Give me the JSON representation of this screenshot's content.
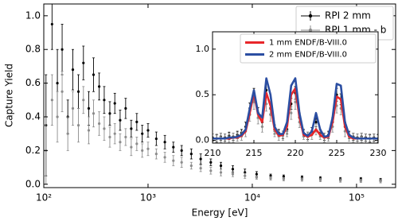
{
  "chart_data": [
    {
      "type": "errorbar",
      "xlabel": "Energy [eV]",
      "ylabel": "Capture Yield",
      "xscale": "log",
      "xlim": [
        100,
        237000
      ],
      "ylim": [
        -0.02,
        1.07
      ],
      "xticks": [
        {
          "value": 100,
          "label": "10²"
        },
        {
          "value": 1000,
          "label": "10³"
        },
        {
          "value": 10000,
          "label": "10⁴"
        },
        {
          "value": 100000,
          "label": "10⁵"
        }
      ],
      "yticks": [
        {
          "value": 0,
          "label": "0.0"
        },
        0.2,
        0.4,
        0.6,
        0.8,
        {
          "value": 1,
          "label": "1.0"
        }
      ],
      "legend": "upper right",
      "x": [
        105,
        120,
        135,
        150,
        170,
        190,
        215,
        240,
        270,
        300,
        340,
        380,
        430,
        480,
        540,
        610,
        690,
        780,
        880,
        1000,
        1200,
        1450,
        1750,
        2100,
        2600,
        3200,
        4000,
        5000,
        6500,
        8500,
        11000,
        15000,
        20000,
        30000,
        45000,
        70000,
        110000,
        170000
      ],
      "series": [
        {
          "name": "RPI 2 mm",
          "color": "#000000",
          "values": [
            0.35,
            0.95,
            0.6,
            0.8,
            0.4,
            0.68,
            0.55,
            0.72,
            0.45,
            0.65,
            0.58,
            0.5,
            0.42,
            0.48,
            0.38,
            0.45,
            0.33,
            0.37,
            0.3,
            0.32,
            0.27,
            0.25,
            0.22,
            0.2,
            0.18,
            0.15,
            0.13,
            0.11,
            0.09,
            0.07,
            0.06,
            0.05,
            0.045,
            0.04,
            0.035,
            0.03,
            0.03,
            0.025
          ],
          "errors": [
            0.3,
            0.15,
            0.2,
            0.15,
            0.1,
            0.12,
            0.1,
            0.1,
            0.1,
            0.1,
            0.08,
            0.08,
            0.07,
            0.06,
            0.06,
            0.06,
            0.05,
            0.05,
            0.05,
            0.04,
            0.04,
            0.04,
            0.03,
            0.03,
            0.03,
            0.03,
            0.02,
            0.02,
            0.02,
            0.02,
            0.015,
            0.01,
            0.01,
            0.01,
            0.01,
            0.01,
            0.01,
            0.01
          ]
        },
        {
          "name": "RPI 1 mm - b",
          "color": "#8c8c8c",
          "values": [
            0.2,
            0.5,
            0.4,
            0.55,
            0.3,
            0.45,
            0.35,
            0.5,
            0.32,
            0.42,
            0.36,
            0.33,
            0.28,
            0.3,
            0.25,
            0.28,
            0.22,
            0.24,
            0.2,
            0.21,
            0.18,
            0.16,
            0.14,
            0.13,
            0.11,
            0.095,
            0.08,
            0.07,
            0.06,
            0.05,
            0.04,
            0.035,
            0.03,
            0.028,
            0.025,
            0.022,
            0.02,
            0.018
          ],
          "errors": [
            0.2,
            0.15,
            0.15,
            0.12,
            0.1,
            0.1,
            0.1,
            0.08,
            0.08,
            0.08,
            0.07,
            0.07,
            0.06,
            0.06,
            0.05,
            0.05,
            0.05,
            0.04,
            0.04,
            0.04,
            0.03,
            0.03,
            0.03,
            0.03,
            0.02,
            0.02,
            0.02,
            0.02,
            0.015,
            0.015,
            0.01,
            0.01,
            0.01,
            0.01,
            0.01,
            0.01,
            0.01,
            0.01
          ]
        }
      ]
    },
    {
      "type": "errorbar",
      "xscale": "linear",
      "xlim": [
        210,
        230
      ],
      "ylim": [
        -0.03,
        1.19
      ],
      "xticks": [
        210,
        215,
        220,
        225,
        230
      ],
      "yticks": [
        {
          "value": 0,
          "label": "0.0"
        },
        0.5,
        {
          "value": 1,
          "label": "1.0"
        }
      ],
      "legend": "upper right",
      "x": [
        210,
        210.5,
        211,
        211.5,
        212,
        212.5,
        213,
        213.5,
        214,
        214.5,
        215,
        215.5,
        216,
        216.5,
        217,
        217.5,
        218,
        218.5,
        219,
        219.5,
        220,
        220.5,
        221,
        221.5,
        222,
        222.5,
        223,
        223.5,
        224,
        224.5,
        225,
        225.5,
        226,
        226.5,
        227,
        227.5,
        228,
        228.5,
        229,
        229.5,
        230
      ],
      "series": [
        {
          "color": "#000000",
          "values": [
            0.03,
            0.02,
            0.04,
            0.03,
            0.05,
            0.04,
            0.06,
            0.08,
            0.15,
            0.35,
            0.5,
            0.3,
            0.2,
            0.55,
            0.35,
            0.12,
            0.08,
            0.06,
            0.12,
            0.4,
            0.52,
            0.25,
            0.08,
            0.05,
            0.1,
            0.2,
            0.08,
            0.04,
            0.06,
            0.2,
            0.5,
            0.45,
            0.15,
            0.06,
            0.04,
            0.03,
            0.04,
            0.03,
            0.02,
            0.03,
            0.02
          ],
          "errors": [
            0.04,
            0.04,
            0.04,
            0.04,
            0.04,
            0.04,
            0.04,
            0.04,
            0.05,
            0.06,
            0.07,
            0.06,
            0.05,
            0.07,
            0.06,
            0.05,
            0.04,
            0.04,
            0.05,
            0.06,
            0.07,
            0.05,
            0.04,
            0.04,
            0.04,
            0.05,
            0.04,
            0.04,
            0.04,
            0.05,
            0.07,
            0.06,
            0.05,
            0.04,
            0.04,
            0.04,
            0.04,
            0.04,
            0.04,
            0.04,
            0.04
          ]
        },
        {
          "color": "#8c8c8c",
          "values": [
            0.02,
            0.02,
            0.03,
            0.02,
            0.03,
            0.03,
            0.04,
            0.05,
            0.1,
            0.28,
            0.42,
            0.25,
            0.15,
            0.4,
            0.28,
            0.1,
            0.05,
            0.05,
            0.1,
            0.3,
            0.42,
            0.2,
            0.06,
            0.04,
            0.06,
            0.12,
            0.06,
            0.03,
            0.04,
            0.15,
            0.38,
            0.35,
            0.1,
            0.04,
            0.03,
            0.02,
            0.03,
            0.02,
            0.02,
            0.02,
            0.02
          ],
          "errors": [
            0.05,
            0.05,
            0.05,
            0.05,
            0.05,
            0.05,
            0.05,
            0.05,
            0.06,
            0.07,
            0.08,
            0.07,
            0.06,
            0.08,
            0.07,
            0.06,
            0.05,
            0.05,
            0.06,
            0.07,
            0.08,
            0.06,
            0.05,
            0.05,
            0.05,
            0.06,
            0.05,
            0.05,
            0.05,
            0.06,
            0.08,
            0.07,
            0.06,
            0.05,
            0.05,
            0.05,
            0.05,
            0.05,
            0.05,
            0.05,
            0.05
          ]
        },
        {
          "type": "line",
          "name": "1 mm ENDF/B-VIII.0",
          "color": "#e8262a",
          "values": [
            0.02,
            0.02,
            0.02,
            0.02,
            0.02,
            0.03,
            0.03,
            0.05,
            0.1,
            0.3,
            0.52,
            0.28,
            0.2,
            0.52,
            0.38,
            0.12,
            0.05,
            0.06,
            0.15,
            0.5,
            0.57,
            0.25,
            0.06,
            0.04,
            0.06,
            0.12,
            0.06,
            0.03,
            0.04,
            0.2,
            0.48,
            0.45,
            0.15,
            0.04,
            0.02,
            0.02,
            0.02,
            0.02,
            0.02,
            0.02,
            0.02
          ]
        },
        {
          "type": "line",
          "name": "2 mm ENDF/B-VIII.0",
          "color": "#2b4ea2",
          "values": [
            0.02,
            0.02,
            0.02,
            0.02,
            0.03,
            0.03,
            0.04,
            0.06,
            0.12,
            0.35,
            0.55,
            0.3,
            0.25,
            0.68,
            0.5,
            0.15,
            0.07,
            0.07,
            0.2,
            0.6,
            0.68,
            0.3,
            0.08,
            0.05,
            0.1,
            0.3,
            0.12,
            0.04,
            0.05,
            0.25,
            0.62,
            0.6,
            0.2,
            0.06,
            0.03,
            0.02,
            0.02,
            0.02,
            0.02,
            0.02,
            0.02
          ]
        }
      ]
    }
  ]
}
